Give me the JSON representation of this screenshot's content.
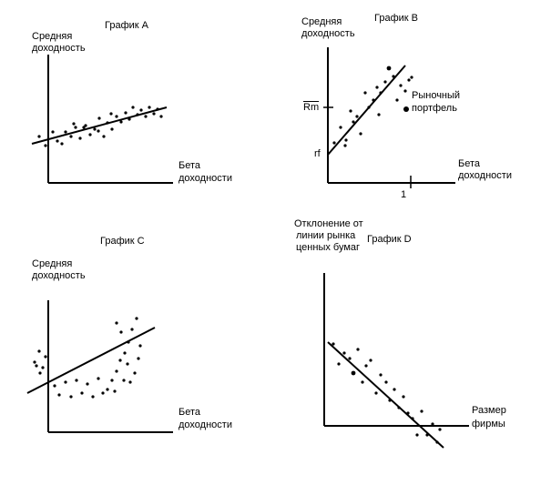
{
  "chart_data": [
    {
      "type": "scatter",
      "title": "График А",
      "ylabel": [
        "Средняя",
        "доходность"
      ],
      "xlabel": [
        "Бета",
        "доходности"
      ],
      "trend_line": true,
      "ticks": []
    },
    {
      "type": "scatter",
      "title": "График В",
      "ylabel": [
        "Средняя",
        "доходность"
      ],
      "xlabel": [
        "Бета",
        "доходности"
      ],
      "trend_line": true,
      "y_tick_labels": [
        "Rm",
        "rf"
      ],
      "x_tick_labels": [
        "1"
      ],
      "annotation": [
        "Рыночный",
        "портфель"
      ]
    },
    {
      "type": "scatter",
      "title": "График С",
      "ylabel": [
        "Средняя",
        "доходность"
      ],
      "xlabel": [
        "Бета",
        "доходности"
      ],
      "trend_line": true
    },
    {
      "type": "scatter",
      "title": "График D",
      "ylabel": [
        "Отклонение от",
        "линии рынка",
        "ценных бумаг"
      ],
      "xlabel": [
        "Размер",
        "фирмы"
      ],
      "trend_line": true
    }
  ]
}
